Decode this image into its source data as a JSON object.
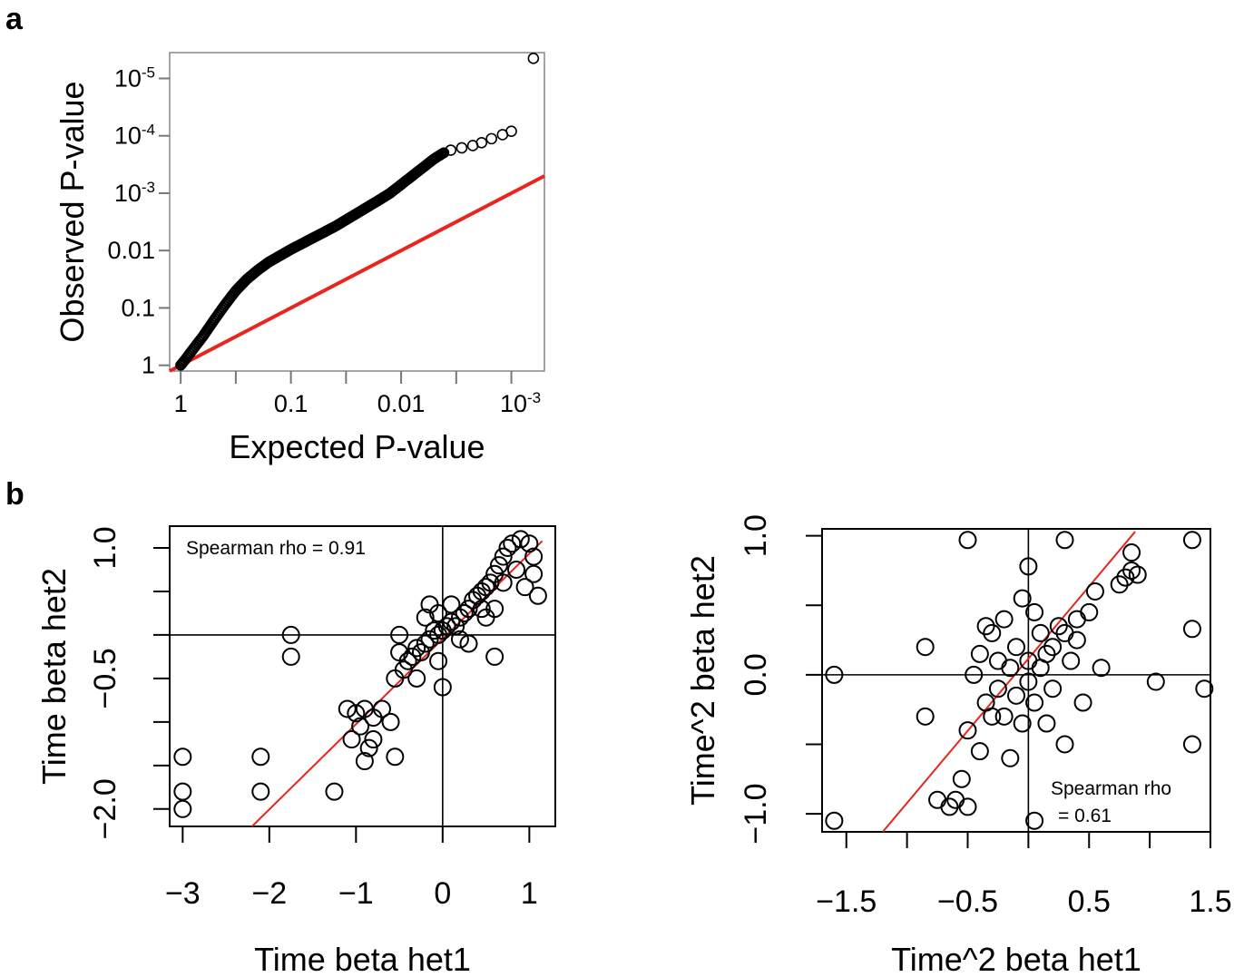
{
  "panels": {
    "a": "a",
    "b": "b"
  },
  "chart_data": [
    {
      "id": "qq",
      "type": "scatter",
      "xlabel": "Expected P-value",
      "ylabel": "Observed P-value",
      "x_ticks": [
        {
          "base": "1",
          "exp": ""
        },
        {
          "base": "0.1",
          "exp": ""
        },
        {
          "base": "0.01",
          "exp": ""
        },
        {
          "base": "10",
          "exp": "-3"
        }
      ],
      "y_ticks": [
        {
          "base": "1",
          "exp": ""
        },
        {
          "base": "0.1",
          "exp": ""
        },
        {
          "base": "0.01",
          "exp": ""
        },
        {
          "base": "10",
          "exp": "-3"
        },
        {
          "base": "10",
          "exp": "-4"
        },
        {
          "base": "10",
          "exp": "-5"
        }
      ],
      "x_scale": "-log10",
      "y_scale": "-log10",
      "xlim_neglog10": [
        -0.1,
        3.3
      ],
      "ylim_neglog10": [
        -0.1,
        5.45
      ],
      "reference_line": {
        "color": "#e8251f",
        "slope": 1,
        "intercept": 0
      },
      "curve_neglog10": [
        [
          0,
          0
        ],
        [
          0.05,
          0.12
        ],
        [
          0.1,
          0.25
        ],
        [
          0.2,
          0.5
        ],
        [
          0.3,
          0.78
        ],
        [
          0.4,
          1.05
        ],
        [
          0.5,
          1.3
        ],
        [
          0.6,
          1.5
        ],
        [
          0.7,
          1.66
        ],
        [
          0.8,
          1.8
        ],
        [
          0.9,
          1.91
        ],
        [
          1.0,
          2.02
        ],
        [
          1.2,
          2.22
        ],
        [
          1.4,
          2.42
        ],
        [
          1.6,
          2.65
        ],
        [
          1.8,
          2.88
        ],
        [
          1.9,
          3.0
        ],
        [
          2.0,
          3.15
        ],
        [
          2.1,
          3.3
        ],
        [
          2.2,
          3.45
        ],
        [
          2.3,
          3.6
        ],
        [
          2.4,
          3.72
        ]
      ],
      "tail_points_neglog10": [
        [
          2.45,
          3.75
        ],
        [
          2.55,
          3.79
        ],
        [
          2.65,
          3.83
        ],
        [
          2.73,
          3.88
        ],
        [
          2.82,
          3.95
        ],
        [
          2.92,
          4.02
        ],
        [
          3.0,
          4.08
        ],
        [
          3.2,
          5.35
        ]
      ]
    },
    {
      "id": "time",
      "type": "scatter",
      "xlabel": "Time beta het1",
      "ylabel": "Time beta het2",
      "x_ticks": [
        "−3",
        "−2",
        "−1",
        "0",
        "1"
      ],
      "x_tick_values": [
        -3,
        -2,
        -1,
        0,
        1
      ],
      "y_ticks": [
        "−2.0",
        "−0.5",
        "1.0"
      ],
      "y_tick_values": [
        -2.0,
        -0.5,
        1.0
      ],
      "y_minor_ticks": [
        -2.0,
        -1.5,
        -1.0,
        -0.5,
        0.0,
        0.5,
        1.0
      ],
      "xlim": [
        -3.15,
        1.3
      ],
      "ylim": [
        -2.2,
        1.25
      ],
      "hline": 0.0,
      "vline": 0.0,
      "fit_line": {
        "color": "#e8251f",
        "x": [
          -2.2,
          1.15
        ],
        "y": [
          -2.2,
          1.08
        ]
      },
      "annotation": [
        "Spearman rho = 0.91"
      ],
      "points": [
        [
          -3,
          -2.0
        ],
        [
          -3,
          -1.8
        ],
        [
          -3,
          -1.4
        ],
        [
          -2.1,
          -1.4
        ],
        [
          -2.1,
          -1.8
        ],
        [
          -1.75,
          0.0
        ],
        [
          -1.75,
          -0.25
        ],
        [
          -1.25,
          -1.8
        ],
        [
          -1.1,
          -0.85
        ],
        [
          -1.05,
          -1.2
        ],
        [
          -1.0,
          -0.9
        ],
        [
          -0.95,
          -1.05
        ],
        [
          -0.9,
          -0.85
        ],
        [
          -0.9,
          -1.45
        ],
        [
          -0.85,
          -1.3
        ],
        [
          -0.8,
          -1.2
        ],
        [
          -0.8,
          -0.95
        ],
        [
          -0.7,
          -0.85
        ],
        [
          -0.6,
          -1.0
        ],
        [
          -0.55,
          -1.4
        ],
        [
          -0.55,
          -0.5
        ],
        [
          -0.5,
          -0.2
        ],
        [
          -0.45,
          -0.4
        ],
        [
          -0.4,
          -0.3
        ],
        [
          -0.35,
          -0.25
        ],
        [
          -0.3,
          -0.15
        ],
        [
          -0.25,
          -0.2
        ],
        [
          -0.2,
          -0.1
        ],
        [
          -0.15,
          -0.05
        ],
        [
          -0.1,
          0.05
        ],
        [
          -0.05,
          0.0
        ],
        [
          0.0,
          0.05
        ],
        [
          0.05,
          0.1
        ],
        [
          0.1,
          0.15
        ],
        [
          0.15,
          0.1
        ],
        [
          0.2,
          0.2
        ],
        [
          0.25,
          0.25
        ],
        [
          0.3,
          0.3
        ],
        [
          0.35,
          0.4
        ],
        [
          0.4,
          0.45
        ],
        [
          0.45,
          0.5
        ],
        [
          0.5,
          0.55
        ],
        [
          0.55,
          0.6
        ],
        [
          0.6,
          0.7
        ],
        [
          0.65,
          0.8
        ],
        [
          0.7,
          0.9
        ],
        [
          0.75,
          1.0
        ],
        [
          0.8,
          1.05
        ],
        [
          0.9,
          1.1
        ],
        [
          1.0,
          1.05
        ],
        [
          1.05,
          0.9
        ],
        [
          1.05,
          0.7
        ],
        [
          1.1,
          0.45
        ],
        [
          0.95,
          0.55
        ],
        [
          0.85,
          0.75
        ],
        [
          0.6,
          0.3
        ],
        [
          0.5,
          0.2
        ],
        [
          0.3,
          -0.1
        ],
        [
          0.0,
          -0.6
        ],
        [
          -0.05,
          0.25
        ],
        [
          -0.15,
          0.35
        ],
        [
          -0.5,
          0.0
        ],
        [
          0.6,
          -0.25
        ],
        [
          -0.05,
          -0.3
        ],
        [
          0.2,
          -0.05
        ],
        [
          -0.3,
          -0.5
        ],
        [
          0.45,
          0.3
        ],
        [
          0.7,
          0.6
        ],
        [
          -0.2,
          0.2
        ],
        [
          0.1,
          0.35
        ]
      ]
    },
    {
      "id": "time2",
      "type": "scatter",
      "xlabel": "Time^2 beta het1",
      "ylabel": "Time^2 beta het2",
      "x_ticks": [
        "−1.5",
        "−0.5",
        "0.5",
        "1.5"
      ],
      "x_tick_values": [
        -1.5,
        -0.5,
        0.5,
        1.5
      ],
      "x_minor_ticks": [
        -1.5,
        -1.0,
        -0.5,
        0.0,
        0.5,
        1.0,
        1.5
      ],
      "y_ticks": [
        "−1.0",
        "0.0",
        "1.0"
      ],
      "y_tick_values": [
        -1.0,
        0.0,
        1.0
      ],
      "y_minor_ticks": [
        -1.0,
        -0.5,
        0.0,
        0.5,
        1.0
      ],
      "xlim": [
        -1.7,
        1.5
      ],
      "ylim": [
        -1.13,
        1.05
      ],
      "hline": 0.0,
      "vline": 0.0,
      "fit_line": {
        "color": "#e8251f",
        "x": [
          -1.2,
          0.88
        ],
        "y": [
          -1.13,
          1.03
        ]
      },
      "annotation": [
        "Spearman rho",
        "= 0.61"
      ],
      "points": [
        [
          -1.6,
          0.0
        ],
        [
          -1.6,
          -1.05
        ],
        [
          -0.85,
          0.2
        ],
        [
          -0.85,
          -0.3
        ],
        [
          -0.75,
          -0.9
        ],
        [
          -0.65,
          -0.95
        ],
        [
          -0.6,
          -0.9
        ],
        [
          -0.55,
          -0.75
        ],
        [
          -0.5,
          -0.95
        ],
        [
          -0.5,
          0.97
        ],
        [
          -0.5,
          -0.4
        ],
        [
          -0.45,
          0.0
        ],
        [
          -0.4,
          0.15
        ],
        [
          -0.4,
          -0.55
        ],
        [
          -0.35,
          -0.2
        ],
        [
          -0.3,
          0.3
        ],
        [
          -0.25,
          0.1
        ],
        [
          -0.2,
          -0.3
        ],
        [
          -0.2,
          0.4
        ],
        [
          -0.15,
          -0.6
        ],
        [
          -0.1,
          0.2
        ],
        [
          -0.1,
          -0.15
        ],
        [
          -0.05,
          0.55
        ],
        [
          0.0,
          0.78
        ],
        [
          0.0,
          0.1
        ],
        [
          0.05,
          -0.2
        ],
        [
          0.05,
          -1.05
        ],
        [
          0.1,
          0.3
        ],
        [
          0.15,
          -0.35
        ],
        [
          0.2,
          0.2
        ],
        [
          0.25,
          0.35
        ],
        [
          0.3,
          -0.5
        ],
        [
          0.3,
          0.97
        ],
        [
          0.35,
          0.1
        ],
        [
          0.4,
          0.25
        ],
        [
          0.45,
          -0.2
        ],
        [
          0.5,
          0.45
        ],
        [
          0.55,
          0.6
        ],
        [
          0.6,
          0.05
        ],
        [
          0.75,
          0.65
        ],
        [
          0.8,
          0.7
        ],
        [
          0.85,
          0.75
        ],
        [
          0.85,
          0.88
        ],
        [
          0.9,
          0.72
        ],
        [
          1.05,
          -0.05
        ],
        [
          1.35,
          0.97
        ],
        [
          1.35,
          0.33
        ],
        [
          1.35,
          -0.5
        ],
        [
          1.45,
          -0.1
        ],
        [
          0.0,
          -0.05
        ],
        [
          0.1,
          0.05
        ],
        [
          -0.25,
          -0.1
        ],
        [
          0.15,
          0.15
        ],
        [
          -0.05,
          -0.35
        ],
        [
          0.2,
          -0.1
        ],
        [
          -0.15,
          0.05
        ],
        [
          0.3,
          0.3
        ],
        [
          0.4,
          0.4
        ],
        [
          -0.3,
          -0.3
        ],
        [
          0.05,
          0.45
        ],
        [
          -0.35,
          0.35
        ]
      ]
    }
  ]
}
